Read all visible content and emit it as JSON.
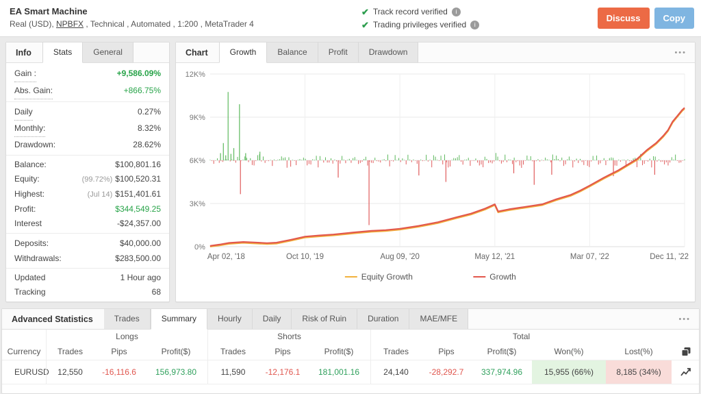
{
  "header": {
    "title": "EA Smart Machine",
    "subtitle_prefix": "Real (USD), ",
    "subtitle_link": "NPBFX",
    "subtitle_suffix": " , Technical , Automated , 1:200 , MetaTrader 4",
    "verified": [
      "Track record verified",
      "Trading privileges verified"
    ],
    "discuss_label": "Discuss",
    "copy_label": "Copy"
  },
  "info_panel": {
    "title": "Info",
    "tabs": [
      {
        "label": "Stats",
        "active": true
      },
      {
        "label": "General",
        "active": false
      }
    ],
    "stats": [
      {
        "label": "Gain :",
        "value": "+9,586.09%"
      },
      {
        "label": "Abs. Gain:",
        "value": "+866.75%"
      },
      {
        "label": "Daily",
        "value": "0.27%"
      },
      {
        "label": "Monthly:",
        "value": "8.32%"
      },
      {
        "label": "Drawdown:",
        "value": "28.62%"
      },
      {
        "label": "Balance:",
        "value": "$100,801.16"
      },
      {
        "label": "Equity:",
        "note": "(99.72%)",
        "value": "$100,520.31"
      },
      {
        "label": "Highest:",
        "note": "(Jul 14)",
        "value": "$151,401.61"
      },
      {
        "label": "Profit:",
        "value": "$344,549.25"
      },
      {
        "label": "Interest",
        "value": "-$24,357.00"
      },
      {
        "label": "Deposits:",
        "value": "$40,000.00"
      },
      {
        "label": "Withdrawals:",
        "value": "$283,500.00"
      },
      {
        "label": "Updated",
        "value": "1 Hour ago"
      },
      {
        "label": "Tracking",
        "value": "68"
      }
    ]
  },
  "chart_panel": {
    "title": "Chart",
    "tabs": [
      "Growth",
      "Balance",
      "Profit",
      "Drawdown"
    ],
    "menu_icon": "•••"
  },
  "chart_data": {
    "type": "line",
    "y_ticks_values": [
      0,
      3000,
      6000,
      9000,
      12000
    ],
    "y_tick_labels": [
      "0%",
      "3K%",
      "6K%",
      "9K%",
      "12K%"
    ],
    "x_ticks": [
      "Apr 02, '18",
      "Oct 10, '19",
      "Aug 09, '20",
      "May 12, '21",
      "Mar 07, '22",
      "Dec 11, '22"
    ],
    "ylim": [
      0,
      12000
    ],
    "legend": [
      {
        "name": "Equity Growth",
        "color": "#F2B13C"
      },
      {
        "name": "Growth",
        "color": "#E2574C"
      }
    ],
    "growth_points": [
      [
        0.0,
        50
      ],
      [
        0.02,
        150
      ],
      [
        0.04,
        260
      ],
      [
        0.07,
        330
      ],
      [
        0.09,
        300
      ],
      [
        0.12,
        250
      ],
      [
        0.14,
        280
      ],
      [
        0.17,
        480
      ],
      [
        0.2,
        700
      ],
      [
        0.23,
        780
      ],
      [
        0.26,
        850
      ],
      [
        0.3,
        980
      ],
      [
        0.34,
        1100
      ],
      [
        0.37,
        1150
      ],
      [
        0.4,
        1250
      ],
      [
        0.44,
        1450
      ],
      [
        0.48,
        1700
      ],
      [
        0.52,
        2050
      ],
      [
        0.55,
        2300
      ],
      [
        0.58,
        2650
      ],
      [
        0.6,
        2950
      ],
      [
        0.607,
        2450
      ],
      [
        0.63,
        2600
      ],
      [
        0.66,
        2750
      ],
      [
        0.7,
        2950
      ],
      [
        0.73,
        3300
      ],
      [
        0.76,
        3600
      ],
      [
        0.78,
        3900
      ],
      [
        0.8,
        4250
      ],
      [
        0.83,
        4800
      ],
      [
        0.86,
        5300
      ],
      [
        0.88,
        5700
      ],
      [
        0.9,
        6100
      ],
      [
        0.92,
        6700
      ],
      [
        0.94,
        7200
      ],
      [
        0.955,
        7700
      ],
      [
        0.965,
        8100
      ],
      [
        0.975,
        8700
      ],
      [
        0.985,
        9100
      ],
      [
        0.995,
        9500
      ],
      [
        1.0,
        9650
      ]
    ],
    "equity_offset": -70,
    "noise_band": {
      "baseline": 6000,
      "count": 260,
      "green_ratio": 0.45,
      "seed": 12,
      "up_color": "#5CB85C",
      "down_color": "#E05B5B"
    },
    "spikes": [
      {
        "x": 0.022,
        "value": 6500,
        "color": "g"
      },
      {
        "x": 0.028,
        "value": 7200,
        "color": "g"
      },
      {
        "x": 0.033,
        "value": 6350,
        "color": "g"
      },
      {
        "x": 0.038,
        "value": 10750,
        "color": "g"
      },
      {
        "x": 0.044,
        "value": 6450,
        "color": "g"
      },
      {
        "x": 0.05,
        "value": 6850,
        "color": "g"
      },
      {
        "x": 0.062,
        "value": 9900,
        "color": "g"
      },
      {
        "x": 0.075,
        "value": 6500,
        "color": "g"
      },
      {
        "x": 0.105,
        "value": 6600,
        "color": "g"
      },
      {
        "x": 0.064,
        "value": 3650,
        "color": "r"
      },
      {
        "x": 0.27,
        "value": 4800,
        "color": "r"
      },
      {
        "x": 0.335,
        "value": 1500,
        "color": "r"
      },
      {
        "x": 0.44,
        "value": 4950,
        "color": "r"
      },
      {
        "x": 0.497,
        "value": 4500,
        "color": "r"
      },
      {
        "x": 0.64,
        "value": 5100,
        "color": "r"
      },
      {
        "x": 0.683,
        "value": 4300,
        "color": "r"
      },
      {
        "x": 0.72,
        "value": 5000,
        "color": "r"
      },
      {
        "x": 0.85,
        "value": 4900,
        "color": "r"
      },
      {
        "x": 0.937,
        "value": 5000,
        "color": "r"
      }
    ]
  },
  "advanced_panel": {
    "title": "Advanced Statistics",
    "tabs": [
      "Trades",
      "Summary",
      "Hourly",
      "Daily",
      "Risk of Ruin",
      "Duration",
      "MAE/MFE"
    ],
    "active_tab": "Summary",
    "menu_icon": "•••",
    "table": {
      "groups": [
        "Longs",
        "Shorts",
        "Total"
      ],
      "columns": [
        "Currency",
        "Trades",
        "Pips",
        "Profit($)",
        "Trades",
        "Pips",
        "Profit($)",
        "Trades",
        "Pips",
        "Profit($)",
        "Won(%)",
        "Lost(%)"
      ],
      "rows": [
        {
          "currency": "EURUSD",
          "longs": {
            "trades": "12,550",
            "pips": "-16,116.6",
            "profit": "156,973.80"
          },
          "shorts": {
            "trades": "11,590",
            "pips": "-12,176.1",
            "profit": "181,001.16"
          },
          "total": {
            "trades": "24,140",
            "pips": "-28,292.7",
            "profit": "337,974.96",
            "won": "15,955 (66%)",
            "lost": "8,185 (34%)"
          }
        }
      ]
    }
  },
  "colors": {
    "gain_green": "#27A348",
    "loss_red": "#E0564E",
    "profit_green": "#2FA05C",
    "discuss_orange": "#EC6A45",
    "copy_blue": "#7FB5E1",
    "won_bg": "#E3F4E1",
    "lost_bg": "#F9DCD9",
    "growth_line": "#E2574C",
    "equity_line": "#F2B13C"
  }
}
